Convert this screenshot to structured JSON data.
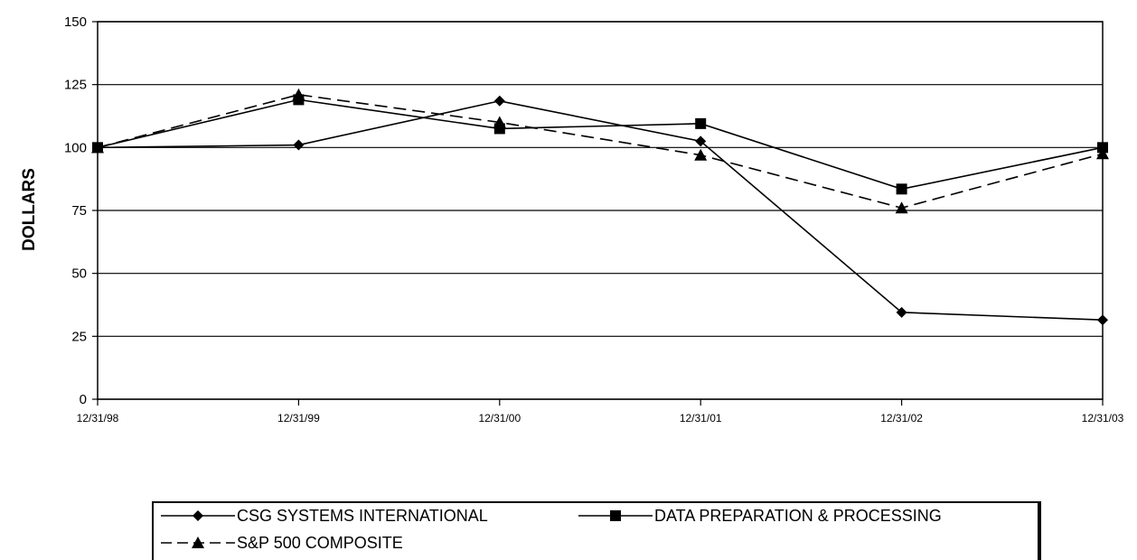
{
  "chart_data": {
    "type": "line",
    "title": "",
    "xlabel": "",
    "ylabel": "DOLLARS",
    "x": [
      "12/31/98",
      "12/31/99",
      "12/31/00",
      "12/31/01",
      "12/31/02",
      "12/31/03"
    ],
    "ylim": [
      0,
      150
    ],
    "yticks": [
      0,
      25,
      50,
      75,
      100,
      125,
      150
    ],
    "grid": "horizontal",
    "legend_position": "bottom",
    "series": [
      {
        "name": "CSG SYSTEMS INTERNATIONAL",
        "values": [
          100,
          101,
          118.5,
          102.5,
          34.5,
          31.5
        ],
        "marker": "diamond",
        "dash": "solid",
        "color": "#000000"
      },
      {
        "name": "DATA PREPARATION & PROCESSING",
        "values": [
          100,
          119,
          107.5,
          109.5,
          83.5,
          100
        ],
        "marker": "square",
        "dash": "solid",
        "color": "#000000"
      },
      {
        "name": "S&P 500 COMPOSITE",
        "values": [
          100,
          121,
          110,
          97,
          76,
          97.5
        ],
        "marker": "triangle",
        "dash": "dashed",
        "color": "#000000"
      }
    ]
  }
}
